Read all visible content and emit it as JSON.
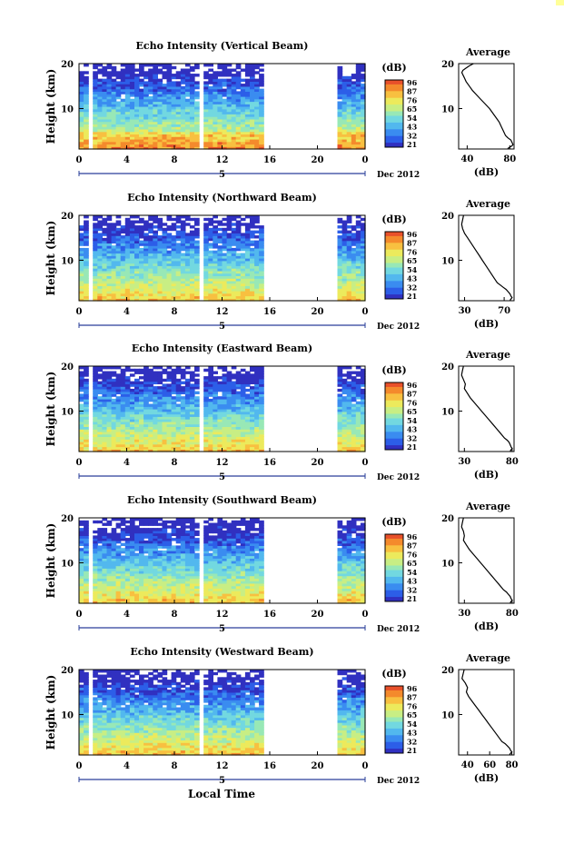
{
  "colors": {
    "background": "#ffffff",
    "axis": "#000000",
    "colormap": [
      "#3030c0",
      "#2c5ee8",
      "#3a8cf0",
      "#52b8ee",
      "#72d8e0",
      "#98e8b6",
      "#c8ee84",
      "#ecea5c",
      "#f8c040",
      "#f48a2c",
      "#e8502a"
    ]
  },
  "figure": {
    "xlabel": "Local Time",
    "date_label": "Dec 2012",
    "day_label": "5"
  },
  "chart_data": [
    {
      "type": "heatmap",
      "title": "Echo Intensity (Vertical Beam)",
      "xlabel": "Local Time",
      "ylabel": "Height (km)",
      "xlim": [
        0,
        24
      ],
      "ylim": [
        1,
        20
      ],
      "xticks": [
        "0",
        "4",
        "8",
        "12",
        "16",
        "20",
        "0"
      ],
      "yticks": [
        "10",
        "20"
      ],
      "colorbar_label": "(dB)",
      "colorbar_ticks": [
        "96",
        "87",
        "76",
        "65",
        "54",
        "43",
        "32",
        "21"
      ],
      "data_gaps_hours": [
        [
          0.95,
          1.3
        ],
        [
          5.7,
          5.9
        ],
        [
          10.2,
          10.6
        ],
        [
          15.3,
          21.5
        ]
      ],
      "average_profile": {
        "title": "Average",
        "xlabel": "(dB)",
        "xticks": [
          "40",
          "80"
        ],
        "xlim": [
          32,
          84
        ],
        "x": [
          46,
          42,
          39,
          36,
          35,
          37,
          39,
          42,
          45,
          49,
          53,
          57,
          61,
          64,
          67,
          70,
          72,
          74,
          76,
          78,
          81,
          82,
          83,
          82,
          80,
          78
        ],
        "y": [
          20,
          19.5,
          19,
          18.5,
          18,
          17,
          16,
          15,
          14,
          13,
          12,
          11,
          10,
          9,
          8,
          7,
          6,
          5,
          4,
          3.5,
          3,
          2.5,
          2,
          1.7,
          1.4,
          1.1
        ]
      }
    },
    {
      "type": "heatmap",
      "title": "Echo Intensity (Northward Beam)",
      "xlabel": "Local Time",
      "ylabel": "Height (km)",
      "xlim": [
        0,
        24
      ],
      "ylim": [
        1,
        20
      ],
      "xticks": [
        "0",
        "4",
        "8",
        "12",
        "16",
        "20",
        "0"
      ],
      "yticks": [
        "10",
        "20"
      ],
      "colorbar_label": "(dB)",
      "colorbar_ticks": [
        "96",
        "87",
        "76",
        "65",
        "54",
        "43",
        "32",
        "21"
      ],
      "data_gaps_hours": [
        [
          0.95,
          1.3
        ],
        [
          5.7,
          5.9
        ],
        [
          10.2,
          10.6
        ],
        [
          15.3,
          21.5
        ]
      ],
      "average_profile": {
        "title": "Average",
        "xlabel": "(dB)",
        "xticks": [
          "30",
          "70"
        ],
        "xlim": [
          24,
          80
        ],
        "x": [
          29,
          28,
          27,
          28,
          30,
          33,
          36,
          39,
          42,
          45,
          48,
          51,
          54,
          57,
          60,
          63,
          66,
          69,
          72,
          74,
          76,
          77,
          78,
          77,
          76
        ],
        "y": [
          20,
          19,
          18,
          17,
          16,
          15,
          14,
          13,
          12,
          11,
          10,
          9,
          8,
          7,
          6,
          5,
          4.5,
          4,
          3.5,
          3,
          2.5,
          2,
          1.7,
          1.4,
          1.1
        ]
      }
    },
    {
      "type": "heatmap",
      "title": "Echo Intensity (Eastward Beam)",
      "xlabel": "Local Time",
      "ylabel": "Height (km)",
      "xlim": [
        0,
        24
      ],
      "ylim": [
        1,
        20
      ],
      "xticks": [
        "0",
        "4",
        "8",
        "12",
        "16",
        "20",
        "0"
      ],
      "yticks": [
        "10",
        "20"
      ],
      "colorbar_label": "(dB)",
      "colorbar_ticks": [
        "96",
        "87",
        "76",
        "65",
        "54",
        "43",
        "32",
        "21"
      ],
      "data_gaps_hours": [
        [
          0.95,
          1.3
        ],
        [
          5.7,
          5.9
        ],
        [
          10.2,
          10.6
        ],
        [
          15.3,
          21.5
        ]
      ],
      "average_profile": {
        "title": "Average",
        "xlabel": "(dB)",
        "xticks": [
          "30",
          "80"
        ],
        "xlim": [
          24,
          82
        ],
        "x": [
          29,
          28,
          27,
          29,
          31,
          30,
          33,
          36,
          40,
          44,
          48,
          52,
          56,
          60,
          64,
          68,
          72,
          75,
          77,
          78,
          79,
          80,
          79,
          78
        ],
        "y": [
          20,
          19,
          18,
          17,
          16,
          15,
          14,
          13,
          12,
          11,
          10,
          9,
          8,
          7,
          6,
          5,
          4,
          3.5,
          3,
          2.5,
          2,
          1.7,
          1.4,
          1.1
        ]
      }
    },
    {
      "type": "heatmap",
      "title": "Echo Intensity (Southward Beam)",
      "xlabel": "Local Time",
      "ylabel": "Height (km)",
      "xlim": [
        0,
        24
      ],
      "ylim": [
        1,
        20
      ],
      "xticks": [
        "0",
        "4",
        "8",
        "12",
        "16",
        "20",
        "0"
      ],
      "yticks": [
        "10",
        "20"
      ],
      "colorbar_label": "(dB)",
      "colorbar_ticks": [
        "96",
        "87",
        "76",
        "65",
        "54",
        "43",
        "32",
        "21"
      ],
      "data_gaps_hours": [
        [
          0.95,
          1.3
        ],
        [
          5.7,
          5.9
        ],
        [
          10.2,
          10.6
        ],
        [
          15.3,
          21.5
        ]
      ],
      "average_profile": {
        "title": "Average",
        "xlabel": "(dB)",
        "xticks": [
          "30",
          "80"
        ],
        "xlim": [
          24,
          82
        ],
        "x": [
          29,
          28,
          27,
          29,
          30,
          29,
          32,
          35,
          39,
          43,
          47,
          51,
          55,
          59,
          63,
          67,
          71,
          74,
          76,
          78,
          79,
          80,
          79,
          78
        ],
        "y": [
          20,
          19,
          18,
          17,
          16,
          15,
          14,
          13,
          12,
          11,
          10,
          9,
          8,
          7,
          6,
          5,
          4,
          3.5,
          3,
          2.5,
          2,
          1.7,
          1.4,
          1.1
        ]
      }
    },
    {
      "type": "heatmap",
      "title": "Echo Intensity (Westward Beam)",
      "xlabel": "Local Time",
      "ylabel": "Height (km)",
      "xlim": [
        0,
        24
      ],
      "ylim": [
        1,
        20
      ],
      "xticks": [
        "0",
        "4",
        "8",
        "12",
        "16",
        "20",
        "0"
      ],
      "yticks": [
        "10",
        "20"
      ],
      "colorbar_label": "(dB)",
      "colorbar_ticks": [
        "96",
        "87",
        "76",
        "65",
        "54",
        "43",
        "32",
        "21"
      ],
      "data_gaps_hours": [
        [
          0.95,
          1.3
        ],
        [
          5.7,
          5.9
        ],
        [
          10.2,
          10.6
        ],
        [
          15.3,
          21.5
        ]
      ],
      "average_profile": {
        "title": "Average",
        "xlabel": "(dB)",
        "xticks": [
          "40",
          "60",
          "80"
        ],
        "xlim": [
          32,
          82
        ],
        "x": [
          37,
          36,
          35,
          38,
          40,
          39,
          41,
          44,
          47,
          50,
          53,
          56,
          59,
          62,
          65,
          68,
          71,
          74,
          76,
          78,
          79,
          80,
          79,
          78
        ],
        "y": [
          20,
          19,
          18,
          17,
          16,
          15,
          14,
          13,
          12,
          11,
          10,
          9,
          8,
          7,
          6,
          5,
          4,
          3.5,
          3,
          2.5,
          2,
          1.7,
          1.4,
          1.1
        ]
      }
    }
  ]
}
